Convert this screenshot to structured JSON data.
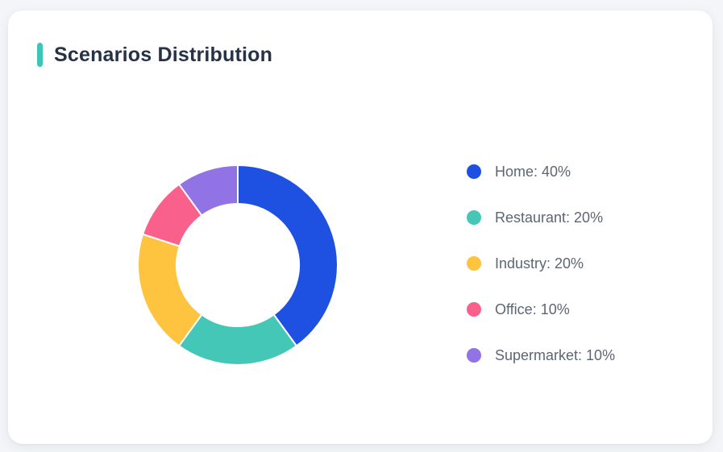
{
  "page": {
    "background_color": "#f4f5f8"
  },
  "card": {
    "title": "Scenarios Distribution",
    "accent_color": "#3dc6b7",
    "background_color": "#ffffff",
    "title_color": "#263246"
  },
  "chart_data": {
    "type": "pie",
    "subtype": "donut",
    "title": "Scenarios Distribution",
    "categories": [
      "Home",
      "Restaurant",
      "Industry",
      "Office",
      "Supermarket"
    ],
    "values": [
      40,
      20,
      20,
      10,
      10
    ],
    "unit": "%",
    "colors": [
      "#1e50e2",
      "#45c7b7",
      "#fec33f",
      "#f9618c",
      "#9173e5"
    ],
    "start_angle_deg": 0,
    "direction": "clockwise",
    "outer_radius_px": 124,
    "inner_radius_px": 76,
    "slice_gap_color": "#ffffff",
    "legend_position": "right",
    "data_labels_shown": false
  },
  "legend": {
    "items": [
      {
        "label": "Home: 40%",
        "color": "#1e50e2"
      },
      {
        "label": "Restaurant: 20%",
        "color": "#45c7b7"
      },
      {
        "label": "Industry: 20%",
        "color": "#fec33f"
      },
      {
        "label": "Office: 10%",
        "color": "#f9618c"
      },
      {
        "label": "Supermarket: 10%",
        "color": "#9173e5"
      }
    ]
  }
}
